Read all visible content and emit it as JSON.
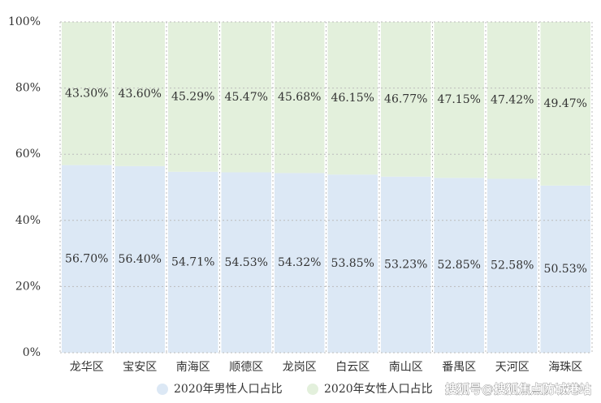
{
  "chart_data": {
    "type": "stacked_bar",
    "categories": [
      "龙华区",
      "宝安区",
      "南海区",
      "顺德区",
      "龙岗区",
      "白云区",
      "南山区",
      "番禺区",
      "天河区",
      "海珠区"
    ],
    "series": [
      {
        "name": "2020年男性人口占比",
        "color": "#dce8f5",
        "values": [
          56.7,
          56.4,
          54.71,
          54.53,
          54.32,
          53.85,
          53.23,
          52.85,
          52.58,
          50.53
        ],
        "value_labels": [
          "56.70%",
          "56.40%",
          "54.71%",
          "54.53%",
          "54.32%",
          "53.85%",
          "53.23%",
          "52.85%",
          "52.58%",
          "50.53%"
        ]
      },
      {
        "name": "2020年女性人口占比",
        "color": "#e3f0dc",
        "values": [
          43.3,
          43.6,
          45.29,
          45.47,
          45.68,
          46.15,
          46.77,
          47.15,
          47.42,
          49.47
        ],
        "value_labels": [
          "43.30%",
          "43.60%",
          "45.29%",
          "45.47%",
          "45.68%",
          "46.15%",
          "46.77%",
          "47.15%",
          "47.42%",
          "49.47%"
        ]
      }
    ],
    "ylim": [
      0,
      100
    ],
    "yticks": [
      {
        "value": 0,
        "label": "0%"
      },
      {
        "value": 20,
        "label": "20%"
      },
      {
        "value": 40,
        "label": "40%"
      },
      {
        "value": 60,
        "label": "60%"
      },
      {
        "value": 80,
        "label": "80%"
      },
      {
        "value": 100,
        "label": "100%"
      }
    ],
    "grid": true,
    "legend": "bottom",
    "watermark": "搜狐号@搜狐焦点防城港站"
  }
}
